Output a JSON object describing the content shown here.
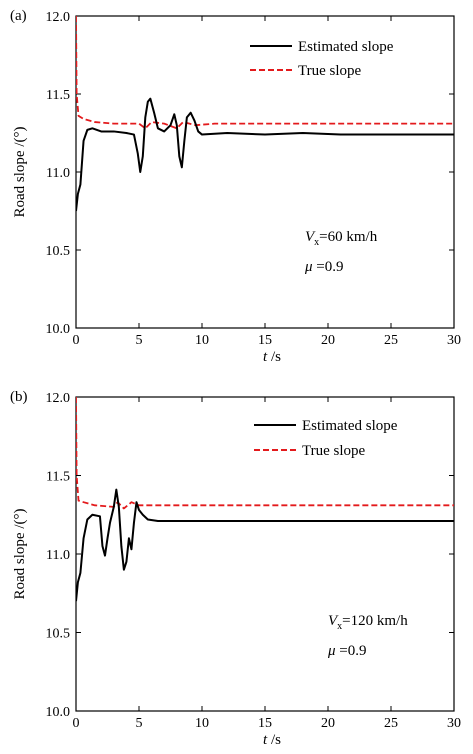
{
  "chart_data": [
    {
      "panel": "(a)",
      "type": "line",
      "xlabel_var": "t",
      "xlabel_unit": "/s",
      "ylabel": "Road slope /(°)",
      "xlim": [
        0,
        30
      ],
      "ylim": [
        10.0,
        12.0
      ],
      "xticks": [
        "0",
        "5",
        "10",
        "15",
        "20",
        "25",
        "30"
      ],
      "yticks": [
        "10.0",
        "10.5",
        "11.0",
        "11.5",
        "12.0"
      ],
      "legend_position": "top-right",
      "annotation": {
        "v_sym": "V",
        "v_sub": "x",
        "v_rest": "=60 km/h",
        "mu_sym": "μ",
        "mu_rest": " =0.9"
      },
      "series": [
        {
          "name": "Estimated slope",
          "color": "#000000",
          "style": "solid",
          "points": [
            [
              0,
              10.75
            ],
            [
              0.15,
              10.86
            ],
            [
              0.35,
              10.92
            ],
            [
              0.6,
              11.2
            ],
            [
              0.9,
              11.27
            ],
            [
              1.3,
              11.28
            ],
            [
              2,
              11.26
            ],
            [
              3,
              11.26
            ],
            [
              4,
              11.25
            ],
            [
              4.6,
              11.24
            ],
            [
              4.9,
              11.12
            ],
            [
              5.1,
              11.0
            ],
            [
              5.3,
              11.1
            ],
            [
              5.5,
              11.35
            ],
            [
              5.7,
              11.45
            ],
            [
              5.9,
              11.47
            ],
            [
              6.2,
              11.38
            ],
            [
              6.5,
              11.28
            ],
            [
              7,
              11.26
            ],
            [
              7.5,
              11.3
            ],
            [
              7.8,
              11.37
            ],
            [
              8.0,
              11.3
            ],
            [
              8.2,
              11.1
            ],
            [
              8.4,
              11.03
            ],
            [
              8.6,
              11.2
            ],
            [
              8.8,
              11.35
            ],
            [
              9.1,
              11.38
            ],
            [
              9.4,
              11.33
            ],
            [
              9.7,
              11.26
            ],
            [
              10,
              11.24
            ],
            [
              12,
              11.25
            ],
            [
              15,
              11.24
            ],
            [
              18,
              11.25
            ],
            [
              21,
              11.24
            ],
            [
              24,
              11.24
            ],
            [
              27,
              11.24
            ],
            [
              30,
              11.24
            ]
          ]
        },
        {
          "name": "True slope",
          "color": "#e31a1c",
          "style": "dashed",
          "points": [
            [
              0,
              12.0
            ],
            [
              0.05,
              11.5
            ],
            [
              0.2,
              11.36
            ],
            [
              0.6,
              11.34
            ],
            [
              1.5,
              11.32
            ],
            [
              3,
              11.31
            ],
            [
              5,
              11.31
            ],
            [
              5.5,
              11.28
            ],
            [
              6,
              11.32
            ],
            [
              7,
              11.31
            ],
            [
              8,
              11.28
            ],
            [
              8.5,
              11.32
            ],
            [
              9.5,
              11.3
            ],
            [
              11,
              11.31
            ],
            [
              15,
              11.31
            ],
            [
              20,
              11.31
            ],
            [
              25,
              11.31
            ],
            [
              30,
              11.31
            ]
          ]
        }
      ]
    },
    {
      "panel": "(b)",
      "type": "line",
      "xlabel_var": "t",
      "xlabel_unit": "/s",
      "ylabel": "Road slope /(°)",
      "xlim": [
        0,
        30
      ],
      "ylim": [
        10.0,
        12.0
      ],
      "xticks": [
        "0",
        "5",
        "10",
        "15",
        "20",
        "25",
        "30"
      ],
      "yticks": [
        "10.0",
        "10.5",
        "11.0",
        "11.5",
        "12.0"
      ],
      "legend_position": "top-right",
      "annotation": {
        "v_sym": "V",
        "v_sub": "x",
        "v_rest": "=120 km/h",
        "mu_sym": "μ",
        "mu_rest": " =0.9"
      },
      "series": [
        {
          "name": "Estimated slope",
          "color": "#000000",
          "style": "solid",
          "points": [
            [
              0,
              10.7
            ],
            [
              0.15,
              10.82
            ],
            [
              0.35,
              10.88
            ],
            [
              0.6,
              11.1
            ],
            [
              0.9,
              11.22
            ],
            [
              1.3,
              11.25
            ],
            [
              1.9,
              11.24
            ],
            [
              2.1,
              11.05
            ],
            [
              2.3,
              10.99
            ],
            [
              2.5,
              11.1
            ],
            [
              2.7,
              11.2
            ],
            [
              3.0,
              11.3
            ],
            [
              3.2,
              11.41
            ],
            [
              3.4,
              11.3
            ],
            [
              3.6,
              11.05
            ],
            [
              3.8,
              10.9
            ],
            [
              4.0,
              10.95
            ],
            [
              4.2,
              11.1
            ],
            [
              4.4,
              11.03
            ],
            [
              4.6,
              11.2
            ],
            [
              4.8,
              11.33
            ],
            [
              5.0,
              11.28
            ],
            [
              5.3,
              11.25
            ],
            [
              5.7,
              11.22
            ],
            [
              6.5,
              11.21
            ],
            [
              10,
              11.21
            ],
            [
              15,
              11.21
            ],
            [
              20,
              11.21
            ],
            [
              25,
              11.21
            ],
            [
              30,
              11.21
            ]
          ]
        },
        {
          "name": "True slope",
          "color": "#e31a1c",
          "style": "dashed",
          "points": [
            [
              0,
              12.0
            ],
            [
              0.05,
              11.5
            ],
            [
              0.2,
              11.34
            ],
            [
              0.6,
              11.33
            ],
            [
              1.5,
              11.31
            ],
            [
              3,
              11.3
            ],
            [
              3.3,
              11.33
            ],
            [
              3.8,
              11.29
            ],
            [
              4.4,
              11.33
            ],
            [
              5,
              11.31
            ],
            [
              8,
              11.31
            ],
            [
              12,
              11.31
            ],
            [
              18,
              11.31
            ],
            [
              24,
              11.31
            ],
            [
              30,
              11.31
            ]
          ]
        }
      ]
    }
  ]
}
